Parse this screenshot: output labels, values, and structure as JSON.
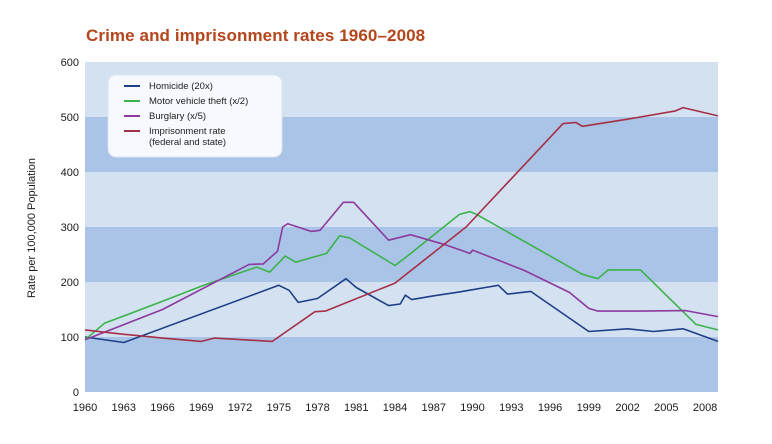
{
  "chart_data": {
    "type": "line",
    "title": "Crime and imprisonment rates 1960–2008",
    "ylabel": "Rate per 100,000 Population",
    "xlabel": "",
    "xlim": [
      1960,
      2009
    ],
    "ylim": [
      0,
      600
    ],
    "yticks": [
      "0",
      "100",
      "200",
      "300",
      "400",
      "500",
      "600"
    ],
    "xticks": [
      "1960",
      "1963",
      "1966",
      "1969",
      "1972",
      "1975",
      "1978",
      "1981",
      "1984",
      "1987",
      "1990",
      "1993",
      "1996",
      "1999",
      "2002",
      "2005",
      "2008"
    ],
    "legend_position": "top-left",
    "background_bands": [
      "#d3e1f1",
      "#a9c4e6"
    ],
    "series": [
      {
        "name": "Homicide (20x)",
        "color": "#1f3f86",
        "x": [
          1960,
          1963,
          1975,
          1975.8,
          1976.5,
          1978,
          1980.2,
          1981,
          1983.5,
          1984.4,
          1984.8,
          1985.3,
          1987,
          1989,
          1990,
          1991,
          1992,
          1992.7,
          1994.5,
          1999,
          2002,
          2004,
          2006.3,
          2009
        ],
        "y": [
          100,
          90,
          194,
          185,
          163,
          170,
          206,
          190,
          157,
          160,
          176,
          168,
          175,
          182,
          186,
          190,
          194,
          178,
          183,
          110,
          115,
          110,
          115,
          92
        ]
      },
      {
        "name": "Motor vehicle theft (x/2)",
        "color": "#3bb34a",
        "x": [
          1960,
          1961.5,
          1966,
          1969.3,
          1973.3,
          1974.3,
          1975.5,
          1976.3,
          1978.7,
          1979.7,
          1980.5,
          1984,
          1985,
          1989,
          1989.8,
          1990.3,
          1998.5,
          1999.7,
          2000.5,
          2003,
          2007.3,
          2009
        ],
        "y": [
          95,
          125,
          165,
          195,
          227,
          218,
          247,
          236,
          252,
          284,
          280,
          230,
          248,
          323,
          328,
          323,
          214,
          206,
          222,
          222,
          123,
          113
        ]
      },
      {
        "name": "Burglary (x/5)",
        "color": "#8c3a9e",
        "x": [
          1960,
          1966,
          1972.7,
          1973.8,
          1974.9,
          1975.3,
          1975.7,
          1977.5,
          1978.2,
          1980,
          1980.8,
          1983.5,
          1985.2,
          1988,
          1989.8,
          1990,
          1994,
          1997.5,
          1999,
          1999.7,
          2003,
          2006.5,
          2009
        ],
        "y": [
          95,
          150,
          232,
          233,
          256,
          300,
          306,
          292,
          294,
          345,
          345,
          276,
          286,
          267,
          252,
          258,
          221,
          181,
          152,
          147,
          147,
          148,
          137
        ]
      },
      {
        "name": "Imprisonment rate (federal and state)",
        "legend_lines": [
          "Imprisonment rate",
          "(federal and state)"
        ],
        "color": "#a63047",
        "x": [
          1960,
          1963,
          1966,
          1969,
          1970,
          1974.5,
          1977.8,
          1978.6,
          1984,
          1989.5,
          1997,
          1998,
          1998.5,
          2002,
          2005.7,
          2006.3,
          2009
        ],
        "y": [
          113,
          105,
          98,
          92,
          98,
          92,
          146,
          147,
          198,
          300,
          488,
          490,
          483,
          496,
          511,
          517,
          502
        ]
      }
    ]
  }
}
